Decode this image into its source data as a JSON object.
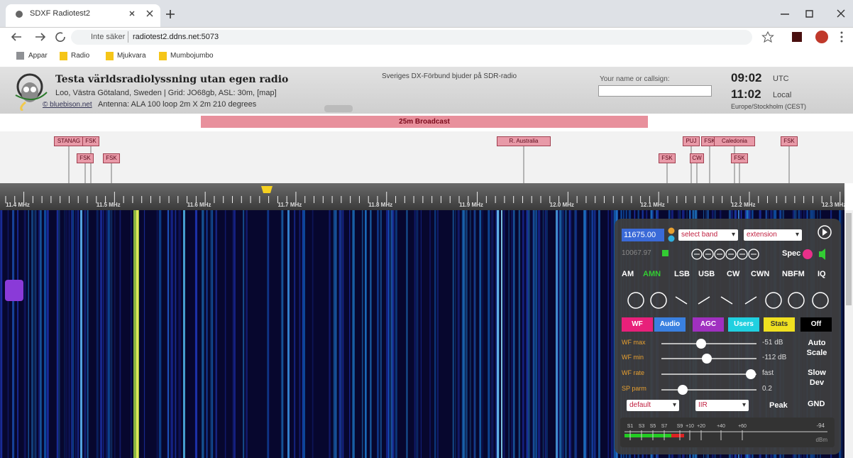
{
  "browser": {
    "tab_title": "SDXF Radiotest2",
    "security": "Inte säker",
    "url": "radiotest2.ddns.net:5073",
    "bookmarks": [
      "Appar",
      "Radio",
      "Mjukvara",
      "Mumbojumbo"
    ]
  },
  "header": {
    "title": "Testa världsradiolyssning utan egen radio",
    "location": "Loo, Västra Götaland, Sweden | Grid: JO68gb, ASL: 30m, [map]",
    "credit": "© bluebison.net",
    "antenna": "Antenna: ALA 100 loop 2m X 2m 210 degrees",
    "sponsor": "Sveriges DX-Förbund bjuder på SDR-radio",
    "callsign_label": "Your name or callsign:",
    "utc_time": "09:02",
    "utc_label": "UTC",
    "local_time": "11:02",
    "local_label": "Local",
    "timezone": "Europe/Stockholm (CEST)"
  },
  "band": "25m Broadcast",
  "station_labels": [
    "STANAG",
    "FSK",
    "FSK",
    "FSK",
    "R. Australia",
    "FSK",
    "CW",
    "PUJ",
    "FSK",
    "Caledonia",
    "FSK",
    "FSK"
  ],
  "scale_labels": [
    "11.4 MHz",
    "11.5 MHz",
    "11.6 MHz",
    "11.7 MHz",
    "11.8 MHz",
    "11.9 MHz",
    "12.0 MHz",
    "12.1 MHz",
    "12.2 MHz",
    "12.3 MHz"
  ],
  "panel": {
    "frequency": "11675.00",
    "band_select": "select band",
    "extension": "extension",
    "memory": "10067.97",
    "spec": "Spec",
    "modes": [
      "AM",
      "AMN",
      "LSB",
      "USB",
      "CW",
      "CWN",
      "NBFM",
      "IQ"
    ],
    "tabs": [
      "WF",
      "Audio",
      "AGC",
      "Users",
      "Stats",
      "Off"
    ],
    "sliders": [
      {
        "label": "WF max",
        "value": "-51 dB"
      },
      {
        "label": "WF min",
        "value": "-112 dB"
      },
      {
        "label": "WF rate",
        "value": "fast"
      },
      {
        "label": "SP parm",
        "value": "0.2"
      }
    ],
    "auto_scale": "Auto Scale",
    "slow_dev": "Slow Dev",
    "colormap": "default",
    "filter": "IIR",
    "peak": "Peak",
    "gnd": "GND",
    "smeter_labels": [
      "S1",
      "S3",
      "S5",
      "S7",
      "S9",
      "+10",
      "+20",
      "+40",
      "+60"
    ],
    "smeter_reading": "-94",
    "smeter_unit": "dBm"
  }
}
